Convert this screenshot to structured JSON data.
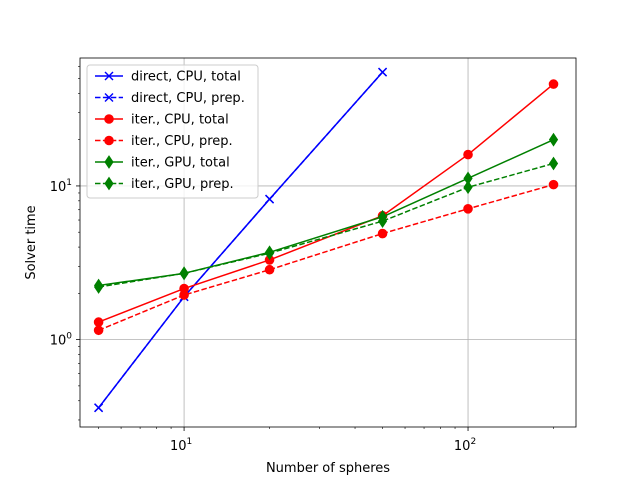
{
  "chart_data": {
    "type": "line",
    "title": "",
    "xlabel": "Number of spheres",
    "ylabel": "Solver time",
    "xscale": "log",
    "yscale": "log",
    "xlim": [
      4.3,
      240
    ],
    "ylim": [
      0.27,
      68
    ],
    "grid": "major",
    "legend_position": "top-left",
    "x_ticks": [
      {
        "value": 10,
        "base": "10",
        "exp": "1"
      },
      {
        "value": 100,
        "base": "10",
        "exp": "2"
      }
    ],
    "y_ticks": [
      {
        "value": 1,
        "base": "10",
        "exp": "0"
      },
      {
        "value": 10,
        "base": "10",
        "exp": "1"
      }
    ],
    "series": [
      {
        "name": "direct, CPU, total",
        "color": "#0000ff",
        "linestyle": "solid",
        "marker": "x",
        "x": [
          5,
          10,
          20,
          50
        ],
        "y": [
          0.36,
          1.9,
          8.2,
          55
        ]
      },
      {
        "name": "direct, CPU, prep.",
        "color": "#0000ff",
        "linestyle": "dashed",
        "marker": "x",
        "x": [
          5,
          10,
          20,
          50
        ],
        "y": [
          0.36,
          1.9,
          8.2,
          55
        ]
      },
      {
        "name": "iter., CPU, total",
        "color": "#ff0000",
        "linestyle": "solid",
        "marker": "circle",
        "x": [
          5,
          10,
          20,
          50,
          100,
          200
        ],
        "y": [
          1.3,
          2.15,
          3.3,
          6.4,
          16,
          46
        ]
      },
      {
        "name": "iter., CPU, prep.",
        "color": "#ff0000",
        "linestyle": "dashed",
        "marker": "circle",
        "x": [
          5,
          10,
          20,
          50,
          100,
          200
        ],
        "y": [
          1.15,
          1.95,
          2.85,
          4.9,
          7.1,
          10.2
        ]
      },
      {
        "name": "iter., GPU, total",
        "color": "#008000",
        "linestyle": "solid",
        "marker": "diamond",
        "x": [
          5,
          10,
          20,
          50,
          100,
          200
        ],
        "y": [
          2.25,
          2.7,
          3.7,
          6.3,
          11.2,
          20
        ]
      },
      {
        "name": "iter., GPU, prep.",
        "color": "#008000",
        "linestyle": "dashed",
        "marker": "diamond",
        "x": [
          5,
          10,
          20,
          50,
          100,
          200
        ],
        "y": [
          2.2,
          2.7,
          3.65,
          5.9,
          9.8,
          14
        ]
      }
    ]
  }
}
